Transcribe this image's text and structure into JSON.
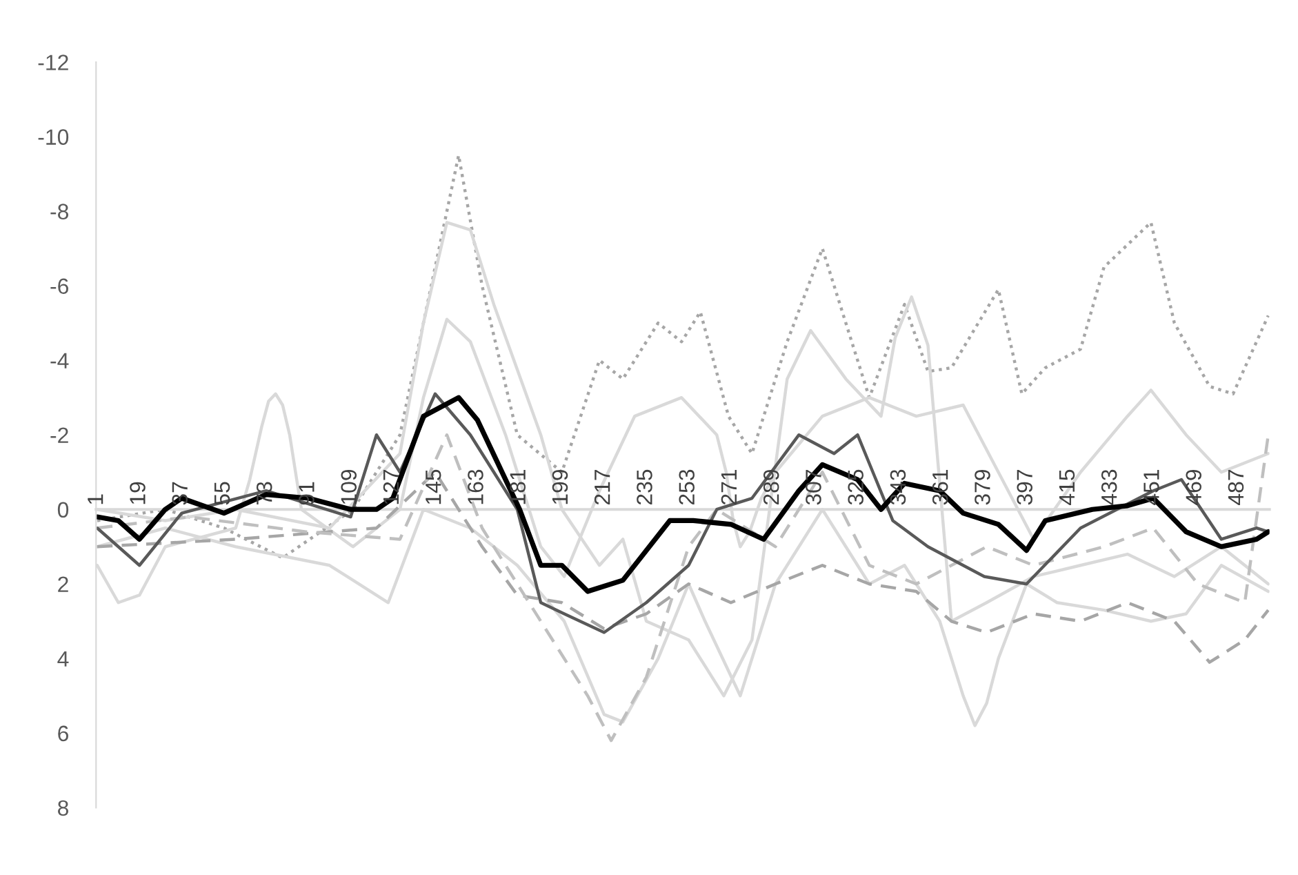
{
  "chart_data": {
    "type": "line",
    "xlim": [
      0.5,
      500.5
    ],
    "xticks": [
      1,
      19,
      37,
      55,
      73,
      91,
      109,
      127,
      145,
      163,
      181,
      199,
      217,
      235,
      253,
      271,
      289,
      307,
      325,
      343,
      361,
      379,
      397,
      415,
      433,
      451,
      469,
      487
    ],
    "ylim": [
      8,
      -12
    ],
    "yticks": [
      -12,
      -10,
      -8,
      -6,
      -4,
      -2,
      0,
      2,
      4,
      6,
      8
    ],
    "grid": false,
    "legend": false,
    "marker": "none",
    "series": [
      {
        "color": "#a6a6a6",
        "line_style": "dotted",
        "x": [
          1,
          30,
          55,
          80,
          110,
          130,
          140,
          155,
          165,
          180,
          199,
          215,
          225,
          240,
          250,
          258,
          270,
          280,
          295,
          310,
          330,
          345,
          355,
          365,
          385,
          395,
          405,
          420,
          430,
          450,
          460,
          475,
          485,
          500
        ],
        "values": [
          0.3,
          0,
          0.5,
          1.3,
          0,
          -2,
          -5,
          -9.5,
          -6,
          -2,
          -1,
          -4,
          -3.5,
          -5,
          -4.5,
          -5.3,
          -2.5,
          -1.5,
          -4.5,
          -7,
          -3,
          -5.5,
          -3.7,
          -3.8,
          -5.9,
          -3.1,
          -3.8,
          -4.3,
          -6.5,
          -7.7,
          -5,
          -3.3,
          -3.1,
          -5.2
        ]
      },
      {
        "color": "#d9d9d9",
        "line_style": "solid",
        "x": [
          1,
          30,
          60,
          100,
          130,
          140,
          150,
          160,
          170,
          190,
          199,
          215,
          225,
          235,
          253,
          268,
          280,
          295,
          305,
          320,
          335,
          341,
          348,
          355,
          365,
          380,
          400,
          420,
          440,
          460,
          480,
          500
        ],
        "values": [
          0,
          0.3,
          0,
          0.5,
          -1.5,
          -5,
          -7.7,
          -7.5,
          -5.5,
          -2,
          0,
          1.5,
          0.8,
          3,
          3.5,
          5,
          3.5,
          -3.5,
          -4.8,
          -3.5,
          -2.5,
          -4.6,
          -5.7,
          -4.4,
          3,
          2.5,
          1.8,
          1.5,
          1.2,
          1.8,
          1,
          2
        ]
      },
      {
        "color": "#d9d9d9",
        "line_style": "solid",
        "x": [
          1,
          10,
          19,
          30,
          60,
          66,
          71,
          74,
          77,
          80,
          83,
          88,
          110,
          130,
          140,
          150,
          160,
          175,
          190,
          200,
          215,
          230,
          250,
          265,
          269,
          272,
          275,
          279,
          284,
          290,
          310,
          330,
          350,
          370,
          385,
          400,
          420,
          440,
          450,
          465,
          480,
          500
        ],
        "values": [
          1.5,
          2.5,
          2.3,
          1,
          0.5,
          -0.8,
          -2.2,
          -2.9,
          -3.1,
          -2.8,
          -2,
          0,
          1,
          0,
          -3,
          -5.1,
          -4.5,
          -2,
          1,
          1.8,
          -0.5,
          -2.5,
          -3,
          -2,
          -1,
          0.3,
          1,
          0.6,
          -0.3,
          -1,
          -2.5,
          -3,
          -2.5,
          -2.8,
          -1,
          0.8,
          -1,
          -2.5,
          -3.2,
          -2,
          -1,
          -1.5
        ]
      },
      {
        "color": "#d9d9d9",
        "line_style": "solid",
        "x": [
          1,
          30,
          60,
          100,
          125,
          140,
          160,
          180,
          200,
          217,
          225,
          240,
          253,
          260,
          275,
          290,
          310,
          330,
          345,
          360,
          370,
          375,
          380,
          385,
          397,
          410,
          430,
          450,
          465,
          480,
          500
        ],
        "values": [
          1,
          0.5,
          1,
          1.5,
          2.5,
          0,
          0.5,
          1.5,
          3,
          5.5,
          5.7,
          4,
          2,
          3,
          5,
          2,
          0,
          2,
          1.5,
          3,
          5,
          5.8,
          5.2,
          4,
          2,
          2.5,
          2.7,
          3,
          2.8,
          1.5,
          2.2
        ]
      },
      {
        "color": "#a6a6a6",
        "line_style": "dashed",
        "x": [
          1,
          60,
          120,
          145,
          165,
          180,
          199,
          217,
          235,
          253,
          271,
          290,
          310,
          330,
          350,
          365,
          380,
          400,
          420,
          440,
          460,
          475,
          490,
          500
        ],
        "values": [
          1,
          0.8,
          0.5,
          -1,
          1,
          2.3,
          2.5,
          3.2,
          2.8,
          2,
          2.5,
          2,
          1.5,
          2,
          2.2,
          3,
          3.3,
          2.8,
          3,
          2.5,
          3,
          4.1,
          3.5,
          2.7
        ]
      },
      {
        "color": "#bfbfbf",
        "line_style": "dashed",
        "x": [
          1,
          40,
          90,
          130,
          150,
          165,
          190,
          210,
          220,
          235,
          253,
          265,
          290,
          310,
          330,
          350,
          380,
          400,
          430,
          451,
          470,
          490,
          500
        ],
        "values": [
          0.5,
          0.2,
          0.6,
          0.8,
          -2,
          0.5,
          3,
          5,
          6.2,
          4.5,
          1,
          0,
          1,
          -1,
          1.5,
          2,
          1,
          1.5,
          1,
          0.5,
          2,
          2.5,
          -2
        ]
      },
      {
        "color": "#595959",
        "line_style": "solid",
        "x": [
          1,
          19,
          37,
          73,
          109,
          120,
          130,
          145,
          160,
          180,
          190,
          200,
          217,
          235,
          253,
          265,
          280,
          300,
          315,
          325,
          340,
          355,
          379,
          397,
          420,
          451,
          463,
          480,
          495,
          500
        ],
        "values": [
          0.5,
          1.5,
          0.1,
          -0.5,
          0.2,
          -2,
          -1,
          -3.1,
          -2,
          0,
          2.5,
          2.8,
          3.3,
          2.5,
          1.5,
          0,
          -0.3,
          -2,
          -1.5,
          -2,
          0.3,
          1,
          1.8,
          2,
          0.5,
          -0.5,
          -0.8,
          0.8,
          0.5,
          0.6
        ]
      },
      {
        "color": "#000000",
        "line_style": "solid",
        "x": [
          1,
          10,
          19,
          30,
          37,
          55,
          73,
          91,
          109,
          120,
          127,
          140,
          155,
          163,
          181,
          190,
          199,
          210,
          225,
          245,
          255,
          271,
          285,
          300,
          310,
          325,
          335,
          345,
          360,
          370,
          385,
          397,
          405,
          425,
          440,
          451,
          465,
          480,
          495,
          500
        ],
        "values": [
          0.2,
          0.3,
          0.8,
          0,
          -0.3,
          0.1,
          -0.4,
          -0.3,
          0,
          0,
          -0.3,
          -2.5,
          -3,
          -2.4,
          0,
          1.5,
          1.5,
          2.2,
          1.9,
          0.3,
          0.3,
          0.4,
          0.8,
          -0.5,
          -1.2,
          -0.8,
          0,
          -0.7,
          -0.5,
          0.1,
          0.4,
          1.1,
          0.3,
          0,
          -0.1,
          -0.3,
          0.6,
          1,
          0.8,
          0.6
        ]
      }
    ]
  }
}
